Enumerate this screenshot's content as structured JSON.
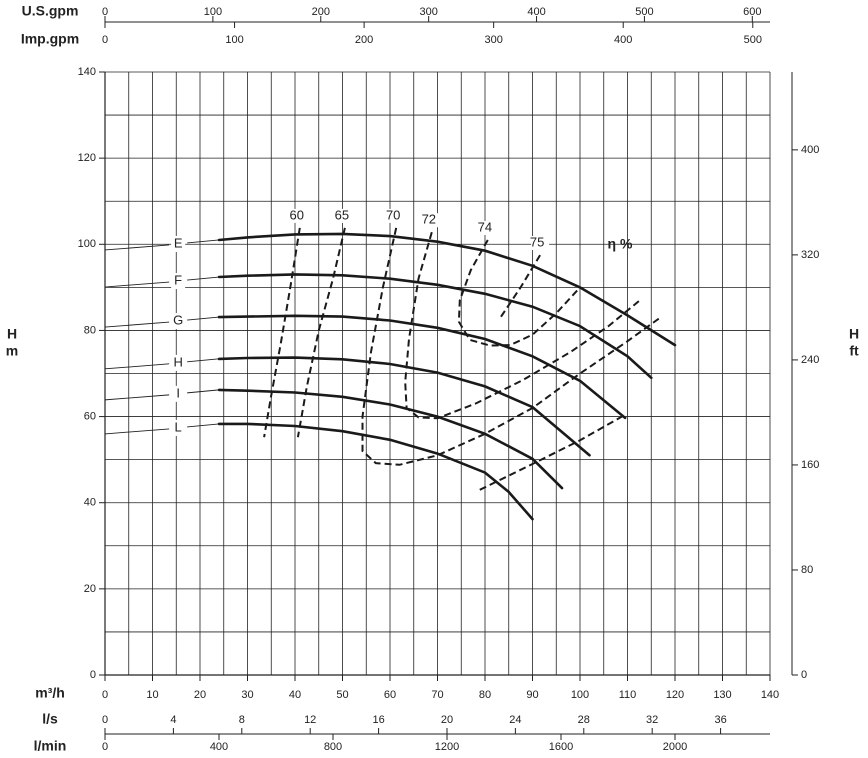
{
  "chart_data": {
    "type": "line",
    "x_label": "m³/h",
    "xlim": [
      0,
      140
    ],
    "xticks": [
      0,
      10,
      20,
      30,
      40,
      50,
      60,
      70,
      80,
      90,
      100,
      110,
      120,
      130,
      140
    ],
    "xgrid": [
      0,
      5,
      10,
      15,
      20,
      25,
      30,
      35,
      40,
      45,
      50,
      55,
      60,
      65,
      70,
      75,
      80,
      85,
      90,
      95,
      100,
      105,
      110,
      115,
      120,
      125,
      130,
      135,
      140
    ],
    "y_label": "H",
    "y_unit": "m",
    "ylim": [
      0,
      140
    ],
    "yticks": [
      0,
      20,
      40,
      60,
      80,
      100,
      120,
      140
    ],
    "ygrid": [
      0,
      10,
      20,
      30,
      40,
      50,
      60,
      70,
      80,
      90,
      100,
      110,
      120,
      130,
      140
    ],
    "y2_label": "H",
    "y2_unit": "ft",
    "y2lim": [
      0,
      459.3
    ],
    "y2ticks": [
      0,
      80,
      160,
      240,
      320,
      400
    ],
    "top_axes": [
      {
        "label": "U.S.gpm",
        "lim": [
          0,
          616.4
        ],
        "ticks": [
          0,
          100,
          200,
          300,
          400,
          500,
          600
        ]
      },
      {
        "label": "Imp.gpm",
        "lim": [
          0,
          513.3
        ],
        "ticks": [
          0,
          100,
          200,
          300,
          400,
          500
        ]
      }
    ],
    "bottom_axes": [
      {
        "label": "l/s",
        "lim": [
          0,
          38.89
        ],
        "ticks": [
          0,
          4,
          8,
          12,
          16,
          20,
          24,
          28,
          32,
          36
        ]
      },
      {
        "label": "l/min",
        "lim": [
          0,
          2333.3
        ],
        "ticks": [
          0,
          400,
          800,
          1200,
          1600,
          2000
        ]
      }
    ],
    "color": "#1a1a1a",
    "series": [
      {
        "name": "E",
        "x": [
          24,
          30,
          40,
          50,
          60,
          70,
          80,
          90,
          100,
          110,
          120
        ],
        "values": [
          101,
          101.6,
          102.3,
          102.4,
          101.9,
          100.6,
          98.5,
          95,
          90,
          83.5,
          76.6
        ]
      },
      {
        "name": "F",
        "x": [
          24,
          30,
          40,
          50,
          60,
          70,
          80,
          90,
          100,
          110,
          115
        ],
        "values": [
          92.4,
          92.7,
          93,
          92.8,
          92,
          90.6,
          88.5,
          85.5,
          81,
          74,
          69
        ]
      },
      {
        "name": "G",
        "x": [
          24,
          30,
          40,
          50,
          60,
          70,
          80,
          90,
          100,
          109.5
        ],
        "values": [
          83.1,
          83.2,
          83.4,
          83.2,
          82.3,
          80.6,
          78,
          74,
          68.3,
          59.7
        ]
      },
      {
        "name": "H",
        "x": [
          24,
          30,
          40,
          50,
          60,
          70,
          80,
          90,
          102
        ],
        "values": [
          73.4,
          73.6,
          73.7,
          73.3,
          72.2,
          70.2,
          67,
          62.2,
          51
        ]
      },
      {
        "name": "I",
        "x": [
          24,
          30,
          40,
          50,
          60,
          70,
          80,
          90,
          96.2
        ],
        "values": [
          66.2,
          66,
          65.6,
          64.6,
          62.8,
          60,
          56,
          50.2,
          43.4
        ]
      },
      {
        "name": "L",
        "x": [
          24,
          30,
          40,
          50,
          60,
          70,
          80,
          85,
          90
        ],
        "values": [
          58.3,
          58.3,
          57.8,
          56.6,
          54.6,
          51.4,
          47,
          42.5,
          36.2
        ]
      }
    ],
    "efficiency_label": "η %",
    "efficiency_curves": [
      {
        "name": "60",
        "x": [
          41,
          39,
          37,
          35,
          33.5
        ],
        "values": [
          103.8,
          90,
          77,
          65,
          55.2
        ]
      },
      {
        "name": "65",
        "x": [
          50.5,
          48,
          45,
          42.5,
          40.6,
          null,
          78.9,
          90,
          100,
          109.5
        ],
        "values": [
          103.8,
          92,
          80,
          67,
          55.2,
          null,
          43,
          49,
          54.5,
          60.4
        ]
      },
      {
        "name": "70",
        "x": [
          61.3,
          58.5,
          56,
          54.2,
          54.2,
          57,
          62,
          70,
          80,
          90,
          100,
          110,
          116.8
        ],
        "values": [
          103.8,
          90,
          75,
          60,
          52,
          49.2,
          48.8,
          51,
          56,
          62,
          70,
          77.5,
          82.9
        ]
      },
      {
        "name": "72",
        "x": [
          68.8,
          66,
          64,
          63.2,
          63.5,
          66,
          70,
          78,
          88,
          98,
          106,
          112.6
        ],
        "values": [
          102.8,
          92,
          78,
          68,
          62,
          59.8,
          59.6,
          63,
          68.5,
          75,
          81,
          87
        ]
      },
      {
        "name": "74",
        "x": [
          80.6,
          77,
          74.7,
          74.5,
          76.8,
          81,
          85.3,
          90,
          95,
          100
        ],
        "values": [
          101,
          94,
          87,
          82,
          77.8,
          76.5,
          76.6,
          79,
          84,
          90
        ]
      },
      {
        "name": "75",
        "x": [
          91.6,
          87.5,
          83.2
        ],
        "values": [
          97.5,
          90,
          82.9
        ]
      }
    ]
  }
}
